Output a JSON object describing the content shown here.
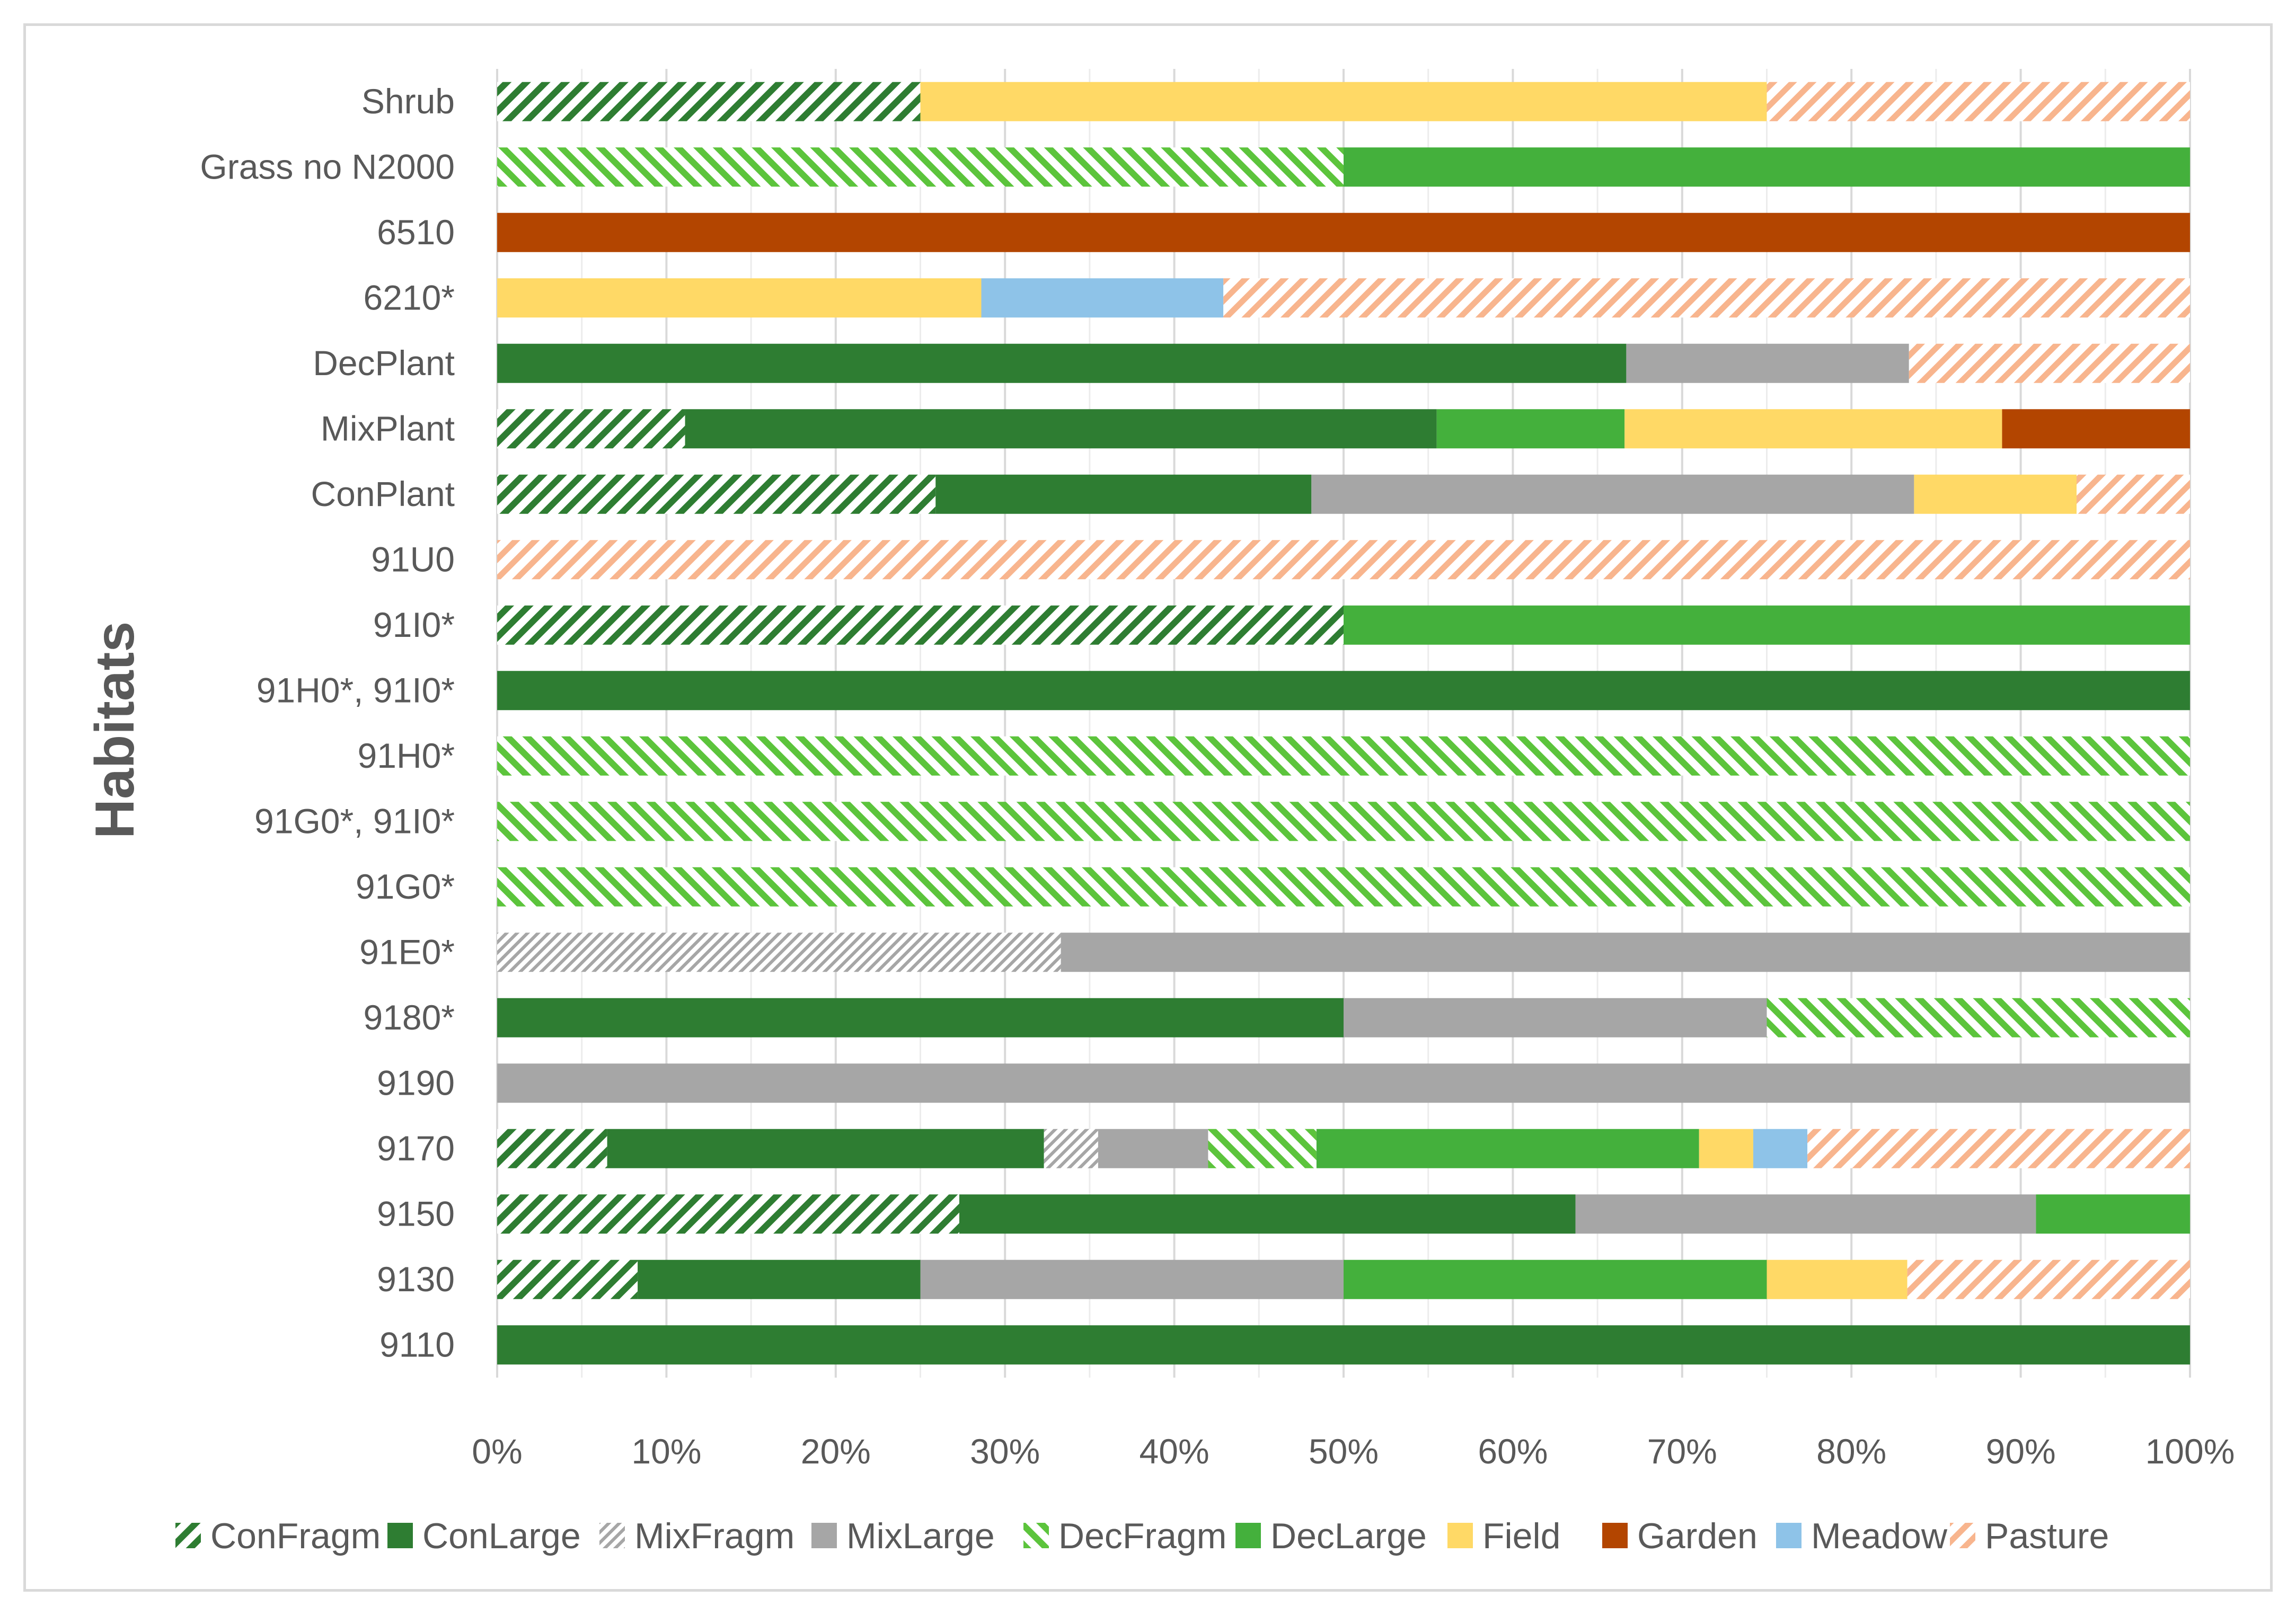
{
  "chart_data": {
    "type": "bar",
    "orientation": "horizontal",
    "stacked": "percent",
    "title": "",
    "ylabel": "Habitats",
    "xlabel": "",
    "xlim": [
      0,
      100
    ],
    "x_tick_labels": [
      "0%",
      "10%",
      "20%",
      "30%",
      "40%",
      "50%",
      "60%",
      "70%",
      "80%",
      "90%",
      "100%"
    ],
    "grid": true,
    "legend_position": "bottom",
    "categories": [
      "Shrub",
      "Grass no N2000",
      "6510",
      "6210*",
      "DecPlant",
      "MixPlant",
      "ConPlant",
      "91U0",
      "91I0*",
      "91H0*, 91I0*",
      "91H0*",
      "91G0*, 91I0*",
      "91G0*",
      "91E0*",
      "9180*",
      "9190",
      "9170",
      "9150",
      "9130",
      "9110"
    ],
    "series": [
      {
        "name": "ConFragm",
        "color": "#2e7d32",
        "pattern": "hatch",
        "values": [
          25,
          0,
          0,
          0,
          0,
          11.1,
          25.9,
          0,
          50,
          0,
          0,
          0,
          0,
          0,
          0,
          0,
          6.5,
          27.3,
          8.3,
          0
        ]
      },
      {
        "name": "ConLarge",
        "color": "#2e7d32",
        "pattern": "solid",
        "values": [
          0,
          0,
          0,
          0,
          66.7,
          44.4,
          22.2,
          0,
          0,
          100,
          0,
          0,
          0,
          0,
          50,
          0,
          25.8,
          36.4,
          16.7,
          100
        ]
      },
      {
        "name": "MixFragm",
        "color": "#a6a6a6",
        "pattern": "hatch-fine",
        "values": [
          0,
          0,
          0,
          0,
          0,
          0,
          0,
          0,
          0,
          0,
          0,
          0,
          0,
          33.3,
          0,
          0,
          3.2,
          0,
          0,
          0
        ]
      },
      {
        "name": "MixLarge",
        "color": "#a6a6a6",
        "pattern": "solid",
        "values": [
          0,
          0,
          0,
          0,
          16.7,
          0,
          35.6,
          0,
          0,
          0,
          0,
          0,
          0,
          66.7,
          25,
          100,
          6.5,
          27.2,
          25,
          0
        ]
      },
      {
        "name": "DecFragm",
        "color": "#5cc43c",
        "pattern": "hatch-back",
        "values": [
          0,
          50,
          0,
          0,
          0,
          0,
          0,
          0,
          0,
          0,
          100,
          100,
          100,
          0,
          25,
          0,
          6.4,
          0,
          0,
          0
        ]
      },
      {
        "name": "DecLarge",
        "color": "#44b03c",
        "pattern": "solid",
        "values": [
          0,
          50,
          0,
          0,
          0,
          11.1,
          0,
          0,
          50,
          0,
          0,
          0,
          0,
          0,
          0,
          0,
          22.6,
          9.1,
          25,
          0
        ]
      },
      {
        "name": "Field",
        "color": "#ffd966",
        "pattern": "solid",
        "values": [
          50,
          0,
          0,
          28.6,
          0,
          22.3,
          9.6,
          0,
          0,
          0,
          0,
          0,
          0,
          0,
          0,
          0,
          3.2,
          0,
          8.3,
          0
        ]
      },
      {
        "name": "Garden",
        "color": "#b34500",
        "pattern": "solid",
        "values": [
          0,
          0,
          100,
          0,
          0,
          11.1,
          0,
          0,
          0,
          0,
          0,
          0,
          0,
          0,
          0,
          0,
          0,
          0,
          0,
          0
        ]
      },
      {
        "name": "Meadow",
        "color": "#8ec3e8",
        "pattern": "solid",
        "values": [
          0,
          0,
          0,
          14.3,
          0,
          0,
          0,
          0,
          0,
          0,
          0,
          0,
          0,
          0,
          0,
          0,
          3.2,
          0,
          0,
          0
        ]
      },
      {
        "name": "Pasture",
        "color": "#f8b58e",
        "pattern": "hatch",
        "values": [
          25,
          0,
          0,
          57.1,
          16.6,
          0,
          6.7,
          100,
          0,
          0,
          0,
          0,
          0,
          0,
          0,
          0,
          22.6,
          0,
          16.7,
          0
        ]
      }
    ]
  }
}
